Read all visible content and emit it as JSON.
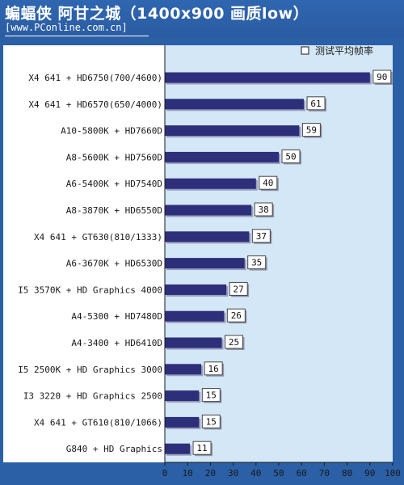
{
  "header": {
    "title": "蝙蝠侠 阿甘之城（1400x900 画质low）",
    "subtitle": "[www.PConline.com.cn]"
  },
  "chart_data": {
    "type": "bar",
    "orientation": "horizontal",
    "title": "蝙蝠侠 阿甘之城（1400x900 画质low）",
    "legend": {
      "entries": [
        "测试平均帧率"
      ],
      "placement": "top-right"
    },
    "categories": [
      "X4 641 + HD6750(700/4600)",
      "X4 641 + HD6570(650/4000)",
      "A10-5800K + HD7660D",
      "A8-5600K + HD7560D",
      "A6-5400K + HD7540D",
      "A8-3870K + HD6550D",
      "X4 641 + GT630(810/1333)",
      "A6-3670K + HD6530D",
      "I5 3570K + HD Graphics 4000",
      "A4-5300 + HD7480D",
      "A4-3400 + HD6410D",
      "I5 2500K + HD Graphics 3000",
      "I3 3220 + HD Graphics 2500",
      "X4 641 + GT610(810/1066)",
      "G840 + HD Graphics"
    ],
    "series": [
      {
        "name": "测试平均帧率",
        "values": [
          90,
          61,
          59,
          50,
          40,
          38,
          37,
          35,
          27,
          26,
          25,
          16,
          15,
          15,
          11
        ]
      }
    ],
    "xlim": [
      0,
      100
    ],
    "xticks": [
      0,
      10,
      20,
      30,
      40,
      50,
      60,
      70,
      80,
      90,
      100
    ],
    "grid": false,
    "colors": {
      "page_background": "#2b5fa6",
      "plot_background": "#d3e7f6",
      "label_background": "#ffffff",
      "bar_fill": "#2d2f7a",
      "bar_shadow": "#9a9fbd",
      "value_box": "#ffffff"
    }
  }
}
